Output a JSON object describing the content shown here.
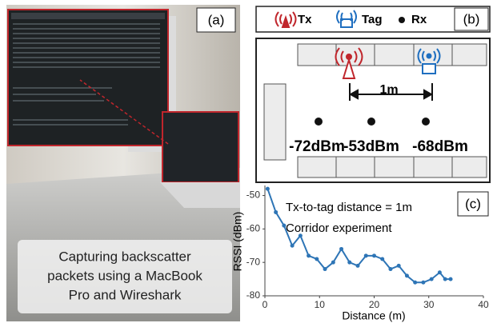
{
  "panel_a": {
    "label": "(a)",
    "caption": [
      "Capturing backscatter",
      "packets using a MacBook",
      "Pro and Wireshark"
    ]
  },
  "panel_b": {
    "label": "(b)",
    "legend": [
      "Tx",
      "Tag",
      "Rx"
    ],
    "distance_label": "1m",
    "rx_labels": [
      "-72dBm",
      "-53dBm",
      "-68dBm"
    ]
  },
  "chart_data": {
    "type": "line",
    "panel_label": "(c)",
    "annotations": [
      "Tx-to-tag distance = 1m",
      "Corridor experiment"
    ],
    "x_label": "Distance (m)",
    "y_label": "RSSI (dBm)",
    "x": [
      0.5,
      2,
      3.5,
      5,
      6.5,
      8,
      9.5,
      11,
      12.5,
      14,
      15.5,
      17,
      18.5,
      20,
      21.5,
      23,
      24.5,
      26,
      27.5,
      29,
      30.5,
      32,
      33,
      34
    ],
    "series": [
      {
        "color": "#2e75b6",
        "values": [
          -48,
          -55,
          -59,
          -65,
          -62,
          -68,
          -69,
          -72,
          -70,
          -66,
          -70,
          -71,
          -68,
          -68,
          -69,
          -72,
          -71,
          -74,
          -76,
          -76,
          -75,
          -73,
          -75,
          -75
        ]
      }
    ],
    "xlim": [
      0,
      40
    ],
    "ylim": [
      -80,
      -47
    ],
    "xticks": [
      0,
      10,
      20,
      30,
      40
    ],
    "yticks": [
      -80,
      -70,
      -60,
      -50
    ],
    "grid": false,
    "markers": true
  }
}
